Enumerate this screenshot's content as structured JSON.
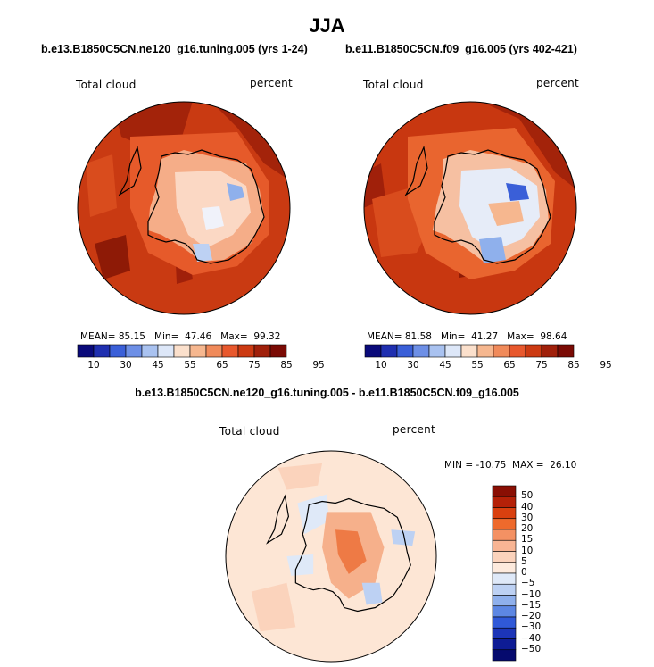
{
  "page_title": "JJA",
  "panels": [
    {
      "title": "b.e13.B1850C5CN.ne120_g16.tuning.005 (yrs 1-24)",
      "variable": "Total cloud",
      "units": "percent",
      "stats": {
        "mean_label": "MEAN=",
        "mean": "85.15",
        "min_label": "Min=",
        "min": "47.46",
        "max_label": "Max=",
        "max": "99.32"
      }
    },
    {
      "title": "b.e11.B1850C5CN.f09_g16.005 (yrs 402-421)",
      "variable": "Total cloud",
      "units": "percent",
      "stats": {
        "mean_label": "MEAN=",
        "mean": "81.58",
        "min_label": "Min=",
        "min": "41.27",
        "max_label": "Max=",
        "max": "98.64"
      }
    }
  ],
  "diff_panel": {
    "title": "b.e13.B1850C5CN.ne120_g16.tuning.005 - b.e11.B1850C5CN.f09_g16.005",
    "variable": "Total cloud",
    "units": "percent",
    "minmax_text": "MIN = -10.75  MAX =  26.10"
  },
  "chart_data": [
    {
      "type": "heatmap",
      "projection": "south-polar-stereographic",
      "title": "b.e13.B1850C5CN.ne120_g16.tuning.005 (yrs 1-24)",
      "variable": "Total cloud",
      "units": "percent",
      "mean": 85.15,
      "min": 47.46,
      "max": 99.32,
      "colorbar": {
        "orientation": "horizontal",
        "levels": [
          10,
          30,
          45,
          55,
          65,
          75,
          85,
          95
        ],
        "colors": [
          "#0a0a7a",
          "#1f2fb0",
          "#3a5fd8",
          "#6d8fe6",
          "#a9c2f0",
          "#dde7f8",
          "#fbe0cc",
          "#f6b78f",
          "#f08a5a",
          "#e8582d",
          "#cc3a12",
          "#a0200a",
          "#7a0a04"
        ]
      }
    },
    {
      "type": "heatmap",
      "projection": "south-polar-stereographic",
      "title": "b.e11.B1850C5CN.f09_g16.005 (yrs 402-421)",
      "variable": "Total cloud",
      "units": "percent",
      "mean": 81.58,
      "min": 41.27,
      "max": 98.64,
      "colorbar": {
        "orientation": "horizontal",
        "levels": [
          10,
          30,
          45,
          55,
          65,
          75,
          85,
          95
        ],
        "colors": [
          "#0a0a7a",
          "#1f2fb0",
          "#3a5fd8",
          "#6d8fe6",
          "#a9c2f0",
          "#dde7f8",
          "#fbe0cc",
          "#f6b78f",
          "#f08a5a",
          "#e8582d",
          "#cc3a12",
          "#a0200a",
          "#7a0a04"
        ]
      }
    },
    {
      "type": "heatmap",
      "projection": "south-polar-stereographic",
      "title": "b.e13.B1850C5CN.ne120_g16.tuning.005 - b.e11.B1850C5CN.f09_g16.005",
      "variable": "Total cloud",
      "units": "percent",
      "min": -10.75,
      "max": 26.1,
      "colorbar": {
        "orientation": "vertical",
        "levels": [
          50,
          40,
          30,
          20,
          15,
          10,
          5,
          0,
          -5,
          -10,
          -15,
          -20,
          -30,
          -40,
          -50
        ],
        "colors": [
          "#8a0f04",
          "#b52108",
          "#d9400f",
          "#ee6a2c",
          "#f49163",
          "#f8b594",
          "#fbd3bc",
          "#fdeadd",
          "#dfe9f8",
          "#bdd1f3",
          "#8fb0ec",
          "#5d87e3",
          "#3059d8",
          "#1c35b8",
          "#0e1c95",
          "#050a6e"
        ]
      }
    }
  ]
}
